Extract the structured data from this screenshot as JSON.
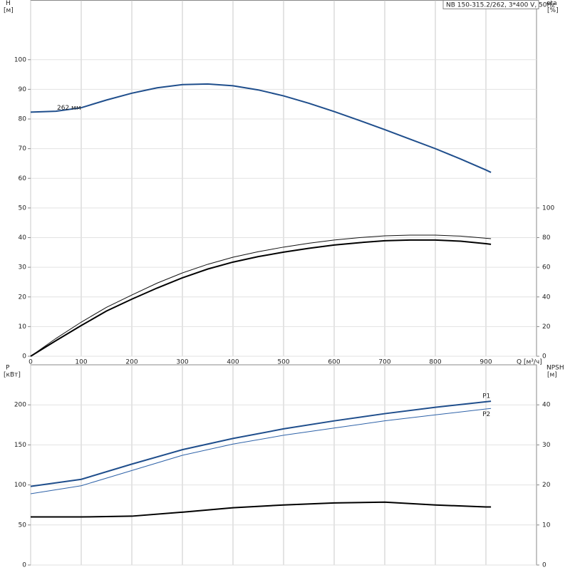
{
  "chart_data": [
    {
      "type": "line",
      "title": "NB 150-315.2/262, 3*400 V, 50Hz",
      "ylabel": "H",
      "yunit": "[м]",
      "y2label": "eta",
      "y2unit": "[%]",
      "xlabel": "Q [м³/ч]",
      "annotation": "262 мм",
      "x": [
        0,
        50,
        100,
        150,
        200,
        250,
        300,
        350,
        400,
        450,
        500,
        550,
        600,
        650,
        700,
        750,
        800,
        850,
        900,
        910
      ],
      "xlim": [
        0,
        1000
      ],
      "xticks": [
        0,
        100,
        200,
        300,
        400,
        500,
        600,
        700,
        800,
        900
      ],
      "ylim": [
        0,
        120
      ],
      "yticks": [
        0,
        10,
        20,
        30,
        40,
        50,
        60,
        70,
        80,
        90,
        100
      ],
      "y2lim": [
        0,
        240
      ],
      "y2ticks": [
        0,
        20,
        40,
        60,
        80,
        100
      ],
      "grid": true,
      "series": [
        {
          "color": "#1f4e8c",
          "axis": "y",
          "values": [
            82.3,
            82.6,
            83.8,
            86.4,
            88.7,
            90.5,
            91.6,
            91.8,
            91.2,
            89.8,
            87.8,
            85.3,
            82.5,
            79.5,
            76.4,
            73.2,
            70.0,
            66.5,
            62.8,
            62.0
          ]
        },
        {
          "color": "#111111",
          "axis": "y2",
          "values": [
            0,
            12,
            23,
            33,
            41.3,
            49.3,
            56.2,
            62,
            66.8,
            70.5,
            73.6,
            76.2,
            78.4,
            80,
            81.2,
            81.7,
            81.7,
            81,
            79.6,
            79.3
          ]
        },
        {
          "color": "#000000",
          "axis": "y2",
          "values": [
            0,
            10.5,
            20.7,
            30.5,
            38.5,
            46,
            52.9,
            58.8,
            63.5,
            67.2,
            70.2,
            72.8,
            75,
            76.6,
            77.9,
            78.4,
            78.4,
            77.6,
            75.9,
            75.5
          ]
        }
      ]
    },
    {
      "type": "line",
      "ylabel": "P",
      "yunit": "[кВт]",
      "y2label": "NPSH",
      "y2unit": "[м]",
      "x": [
        0,
        100,
        200,
        300,
        400,
        500,
        600,
        700,
        800,
        900,
        910
      ],
      "xlim": [
        0,
        1000
      ],
      "ylim": [
        0,
        250
      ],
      "yticks": [
        0,
        50,
        100,
        150,
        200
      ],
      "y2lim": [
        0,
        50
      ],
      "y2ticks": [
        0,
        10,
        20,
        30,
        40
      ],
      "grid": true,
      "series": [
        {
          "name": "P1",
          "color": "#1f4e8c",
          "axis": "y",
          "values": [
            98.2,
            107,
            126,
            144,
            158,
            170,
            180,
            189,
            197,
            203.8,
            204.5
          ]
        },
        {
          "name": "P2",
          "color": "#2e62a8",
          "axis": "y",
          "values": [
            89,
            99,
            118,
            137,
            151,
            162,
            171,
            180,
            187.5,
            194.8,
            195.5
          ]
        },
        {
          "color": "#000000",
          "axis": "y2",
          "values": [
            12,
            12,
            12.2,
            13.2,
            14.3,
            15,
            15.5,
            15.7,
            15,
            14.5,
            14.5
          ]
        }
      ]
    }
  ]
}
